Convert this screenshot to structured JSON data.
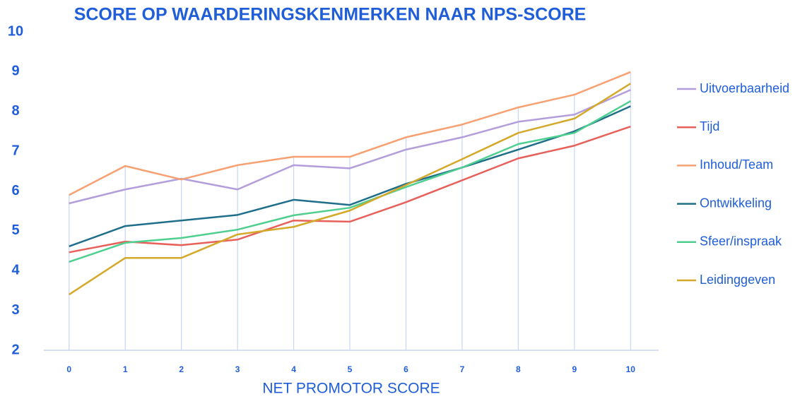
{
  "chart_data": {
    "type": "line",
    "title": "SCORE OP WAARDERINGSKENMERKEN NAAR NPS-SCORE",
    "x_label": "NET PROMOTOR SCORE",
    "x": [
      0,
      1,
      2,
      3,
      4,
      5,
      6,
      7,
      8,
      9,
      10
    ],
    "xlim": [
      -0.45,
      10.5
    ],
    "xticks": [
      0,
      1,
      2,
      3,
      4,
      5,
      6,
      7,
      8,
      9,
      10
    ],
    "ylim": [
      2,
      10
    ],
    "yticks": [
      2,
      3,
      4,
      5,
      6,
      7,
      8,
      9,
      10
    ],
    "grid": true,
    "legend": "right",
    "series": [
      {
        "name": "Uitvoerbaarheid",
        "color": "#b39ddb",
        "values": [
          5.69,
          6.04,
          6.31,
          6.04,
          6.65,
          6.57,
          7.04,
          7.35,
          7.74,
          7.92,
          8.54
        ]
      },
      {
        "name": "Tijd",
        "color": "#e8605a",
        "values": [
          4.46,
          4.73,
          4.64,
          4.78,
          5.26,
          5.23,
          5.72,
          6.27,
          6.82,
          7.14,
          7.62
        ]
      },
      {
        "name": "Inhoud/Team",
        "color": "#f7a072",
        "values": [
          5.9,
          6.63,
          6.29,
          6.65,
          6.86,
          6.86,
          7.35,
          7.67,
          8.1,
          8.42,
          8.99
        ]
      },
      {
        "name": "Ontwikkeling",
        "color": "#1f6f8b",
        "values": [
          4.61,
          5.12,
          5.26,
          5.4,
          5.78,
          5.65,
          6.18,
          6.59,
          7.04,
          7.5,
          8.13
        ]
      },
      {
        "name": "Sfeer/inspraak",
        "color": "#4fcf8f",
        "values": [
          4.22,
          4.7,
          4.82,
          5.03,
          5.39,
          5.58,
          6.1,
          6.59,
          7.18,
          7.46,
          8.26
        ]
      },
      {
        "name": "Leidinggeven",
        "color": "#d4a92a",
        "values": [
          3.4,
          4.32,
          4.32,
          4.91,
          5.1,
          5.51,
          6.15,
          6.8,
          7.46,
          7.82,
          8.7
        ]
      }
    ]
  }
}
